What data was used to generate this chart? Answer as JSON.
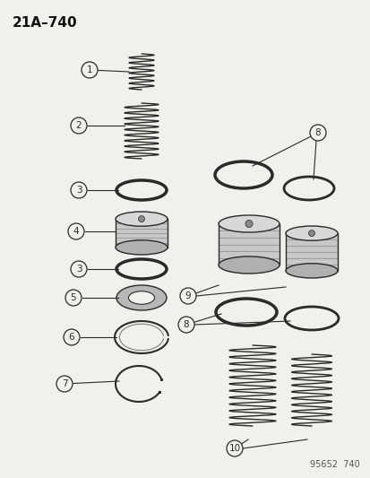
{
  "title": "21A–740",
  "bg_color": "#f2f0ec",
  "line_color": "#2a2a2a",
  "label_color": "#111111",
  "footer": "95652  740",
  "fig_w": 4.14,
  "fig_h": 5.33,
  "dpi": 100
}
